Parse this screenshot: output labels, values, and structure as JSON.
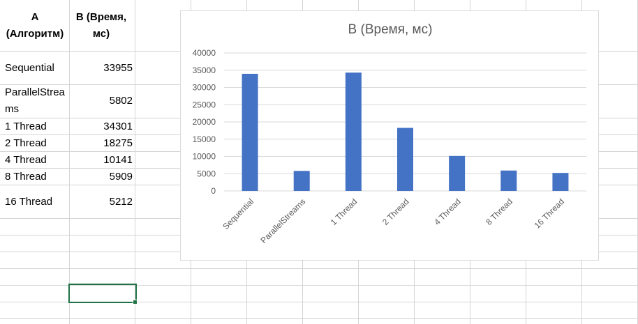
{
  "sheet": {
    "header_a": "A (Алгоритм)",
    "header_b": "B (Время, мс)",
    "rows": [
      {
        "label": "Sequential",
        "value": "33955"
      },
      {
        "label": "ParallelStreams",
        "value": "5802"
      },
      {
        "label": "1 Thread",
        "value": "34301"
      },
      {
        "label": "2 Thread",
        "value": "18275"
      },
      {
        "label": "4 Thread",
        "value": "10141"
      },
      {
        "label": "8 Thread",
        "value": "5909"
      },
      {
        "label": "16 Thread",
        "value": "5212"
      }
    ]
  },
  "chart_data": {
    "type": "bar",
    "title": "B (Время, мс)",
    "categories": [
      "Sequential",
      "ParallelStreams",
      "1 Thread",
      "2 Thread",
      "4 Thread",
      "8 Thread",
      "16 Thread"
    ],
    "series": [
      {
        "values": [
          33955,
          5802,
          34301,
          18275,
          10141,
          5909,
          5212
        ],
        "color": "#4472c4"
      }
    ],
    "ylim": [
      0,
      40000
    ],
    "yticks": [
      0,
      5000,
      10000,
      15000,
      20000,
      25000,
      30000,
      35000,
      40000
    ],
    "grid": true,
    "legend": "none"
  }
}
